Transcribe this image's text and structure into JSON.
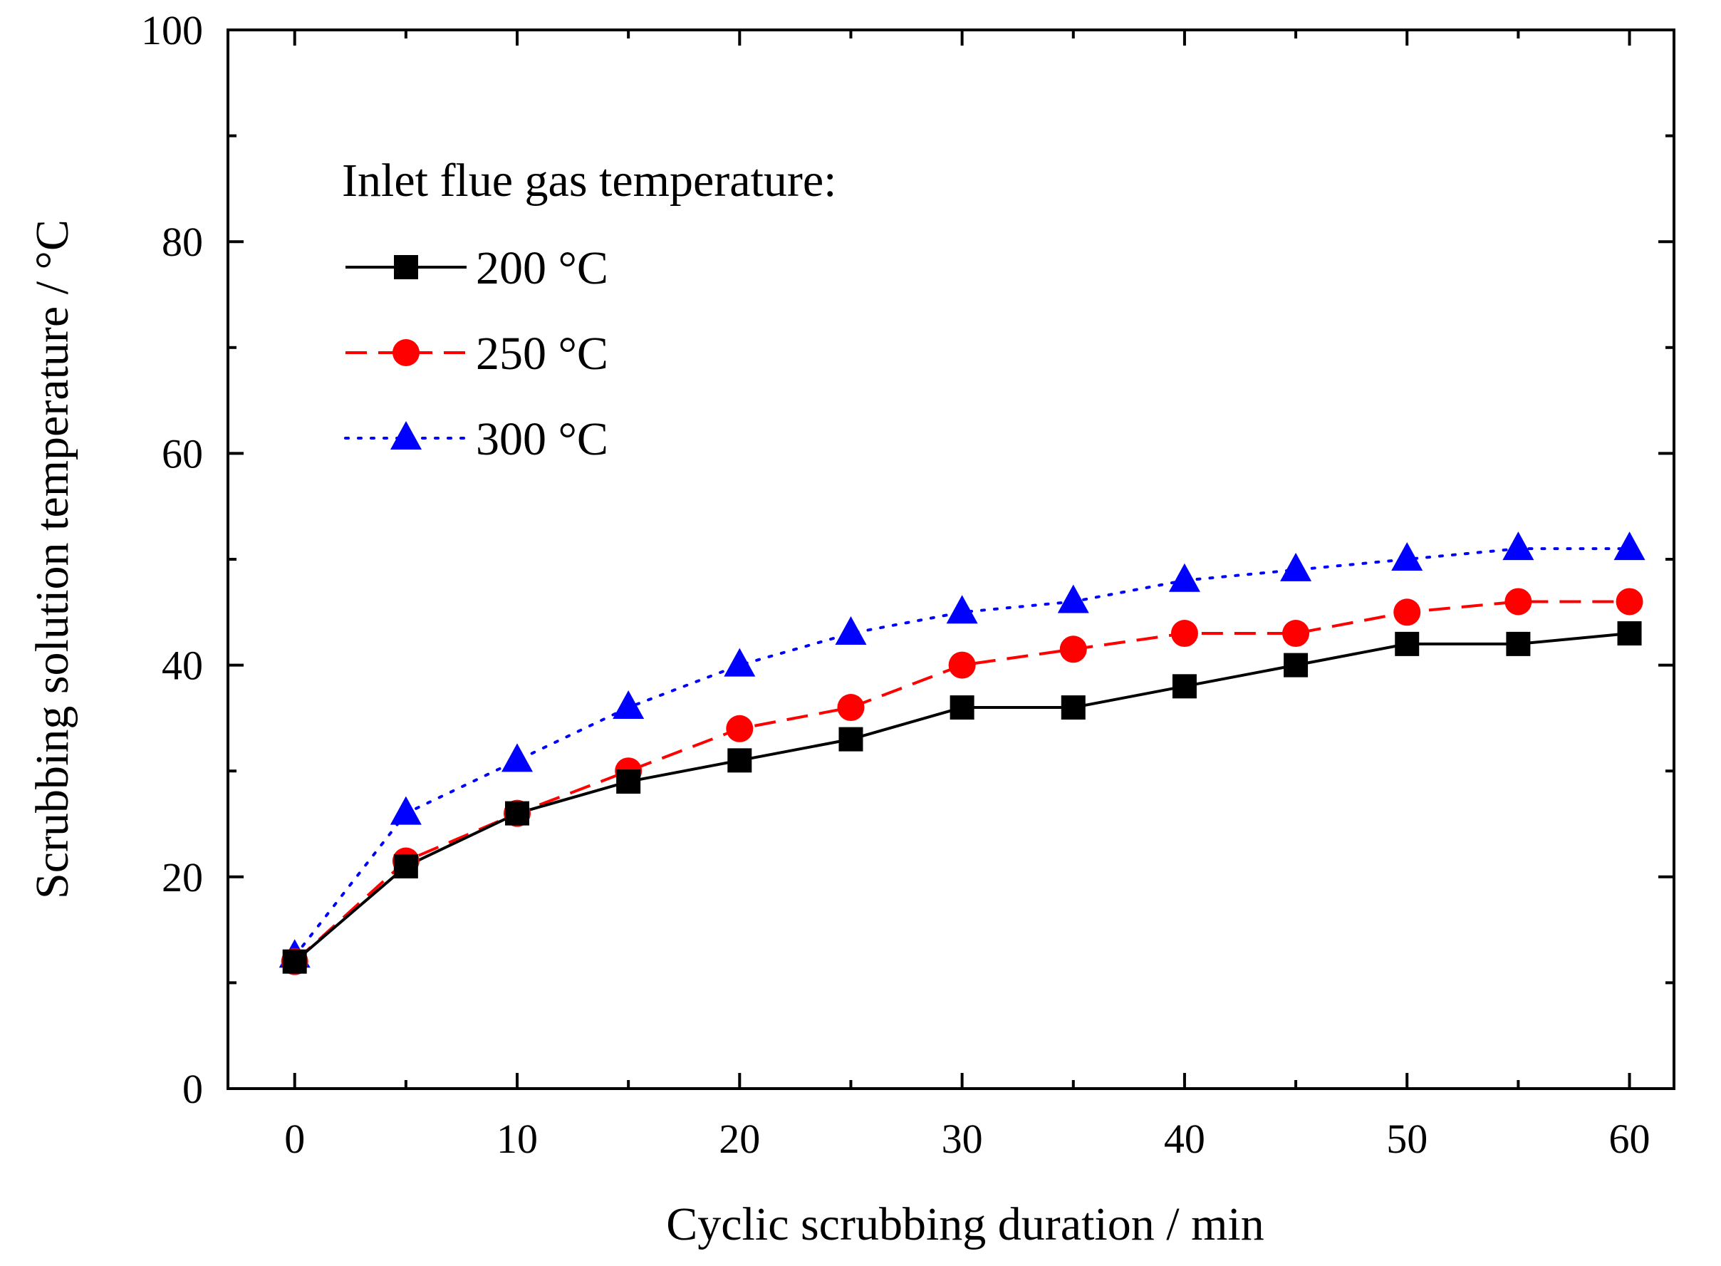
{
  "chart_data": {
    "type": "line",
    "title": "",
    "xlabel": "Cyclic scrubbing duration / min",
    "ylabel": "Scrubbing solution temperature / °C",
    "xlim": [
      -3,
      62
    ],
    "ylim": [
      0,
      100
    ],
    "x_ticks": [
      0,
      10,
      20,
      30,
      40,
      50,
      60
    ],
    "x_tick_labels": [
      "0",
      "10",
      "20",
      "30",
      "40",
      "50",
      "60"
    ],
    "y_ticks": [
      0,
      20,
      40,
      60,
      80,
      100
    ],
    "y_tick_labels": [
      "0",
      "20",
      "40",
      "60",
      "80",
      "100"
    ],
    "grid": false,
    "legend_title": "Inlet flue gas temperature:",
    "legend_position": "top-left",
    "x": [
      0,
      5,
      10,
      15,
      20,
      25,
      30,
      35,
      40,
      45,
      50,
      55,
      60
    ],
    "series": [
      {
        "name": "200 °C",
        "color": "#000000",
        "line_style": "solid",
        "marker": "square",
        "values": [
          12,
          21,
          26,
          29,
          31,
          33,
          36,
          36,
          38,
          40,
          42,
          42,
          43
        ]
      },
      {
        "name": "250 °C",
        "color": "#ff0000",
        "line_style": "dashed",
        "marker": "circle",
        "values": [
          12,
          21.5,
          26,
          30,
          34,
          36,
          40,
          41.5,
          43,
          43,
          45,
          46,
          46
        ]
      },
      {
        "name": "300 °C",
        "color": "#0000ff",
        "line_style": "dotted",
        "marker": "triangle",
        "values": [
          12.5,
          26,
          31,
          36,
          40,
          43,
          45,
          46,
          48,
          49,
          50,
          51,
          51
        ]
      }
    ]
  }
}
